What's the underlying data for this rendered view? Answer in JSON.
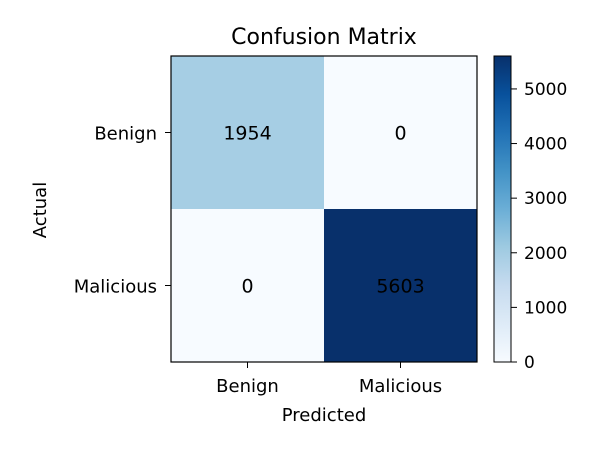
{
  "chart_data": {
    "type": "heatmap",
    "title": "Confusion Matrix",
    "xlabel": "Predicted",
    "ylabel": "Actual",
    "x_categories": [
      "Benign",
      "Malicious"
    ],
    "y_categories": [
      "Benign",
      "Malicious"
    ],
    "values": [
      [
        1954,
        0
      ],
      [
        0,
        5603
      ]
    ],
    "colormap": "Blues",
    "colorbar": {
      "range": [
        0,
        5603
      ],
      "ticks": [
        0,
        1000,
        2000,
        3000,
        4000,
        5000
      ],
      "tick_labels": [
        "0",
        "1000",
        "2000",
        "3000",
        "4000",
        "5000"
      ]
    },
    "colors": {
      "low": "#f7fbff",
      "high": "#08306b"
    },
    "grid": false,
    "legend": "none"
  }
}
